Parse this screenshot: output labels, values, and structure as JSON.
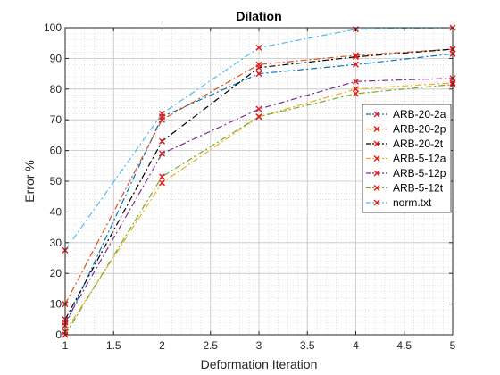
{
  "chart_data": {
    "type": "line",
    "title": "Dilation",
    "xlabel": "Deformation Iteration",
    "ylabel": "Error %",
    "xlim": [
      1,
      5
    ],
    "ylim": [
      0,
      100
    ],
    "x_ticks": [
      "1",
      "1.5",
      "2",
      "2.5",
      "3",
      "3.5",
      "4",
      "4.5",
      "5"
    ],
    "y_ticks": [
      "0",
      "10",
      "20",
      "30",
      "40",
      "50",
      "60",
      "70",
      "80",
      "90",
      "100"
    ],
    "grid": true,
    "minor_grid": true,
    "legend_position": "right",
    "x": [
      1,
      2,
      3,
      4,
      5
    ],
    "series": [
      {
        "name": "ARB-20-2a",
        "color": "#0072BD",
        "values": [
          3,
          71,
          85,
          88,
          91.5
        ]
      },
      {
        "name": "ARB-20-2p",
        "color": "#D95319",
        "values": [
          10,
          70,
          88,
          91,
          93
        ]
      },
      {
        "name": "ARB-20-2t",
        "color": "#000000",
        "values": [
          5,
          63,
          87,
          90.5,
          93
        ]
      },
      {
        "name": "ARB-5-12a",
        "color": "#EDB120",
        "values": [
          1,
          49.5,
          71,
          80,
          82
        ]
      },
      {
        "name": "ARB-5-12p",
        "color": "#7E2F8E",
        "values": [
          4,
          59,
          73.5,
          82.5,
          83.5
        ]
      },
      {
        "name": "ARB-5-12t",
        "color": "#77AC30",
        "values": [
          0,
          51.5,
          71,
          78.5,
          81.5
        ]
      },
      {
        "name": "norm.txt",
        "color": "#4DBEEE",
        "values": [
          27.5,
          72,
          93.5,
          99.5,
          100
        ]
      }
    ]
  }
}
